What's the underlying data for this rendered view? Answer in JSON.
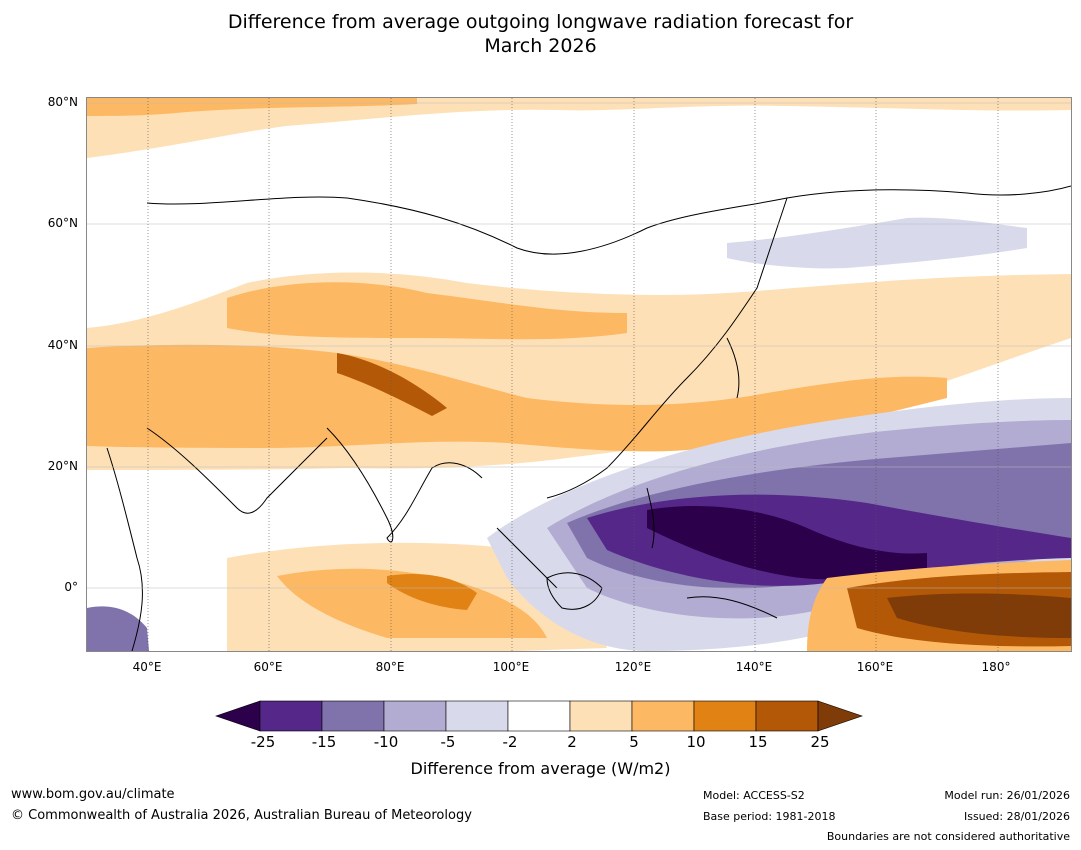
{
  "title_line1": "Difference from average outgoing longwave radiation forecast for",
  "title_line2": "March 2026",
  "lat_labels": [
    "80°N",
    "60°N",
    "40°N",
    "20°N",
    "0°"
  ],
  "lon_labels": [
    "40°E",
    "60°E",
    "80°E",
    "100°E",
    "120°E",
    "140°E",
    "160°E",
    "180°"
  ],
  "colorbar": {
    "ticks": [
      "-25",
      "-15",
      "-10",
      "-5",
      "-2",
      "2",
      "5",
      "10",
      "15",
      "25"
    ],
    "title": "Difference from average (W/m2)",
    "colors": [
      "#2d004b",
      "#542788",
      "#8073ac",
      "#b2abd2",
      "#d8daeb",
      "#ffffff",
      "#fee0b6",
      "#fdb863",
      "#e08214",
      "#b35806",
      "#7f3b08"
    ]
  },
  "footer": {
    "website": "www.bom.gov.au/climate",
    "copyright": "© Commonwealth of Australia 2026, Australian Bureau of Meteorology",
    "model": "Model: ACCESS-S2",
    "base_period": "Base period: 1981-2018",
    "model_run": "Model run: 26/01/2026",
    "issued": "Issued: 28/01/2026",
    "disclaimer": "Boundaries are not considered authoritative"
  }
}
